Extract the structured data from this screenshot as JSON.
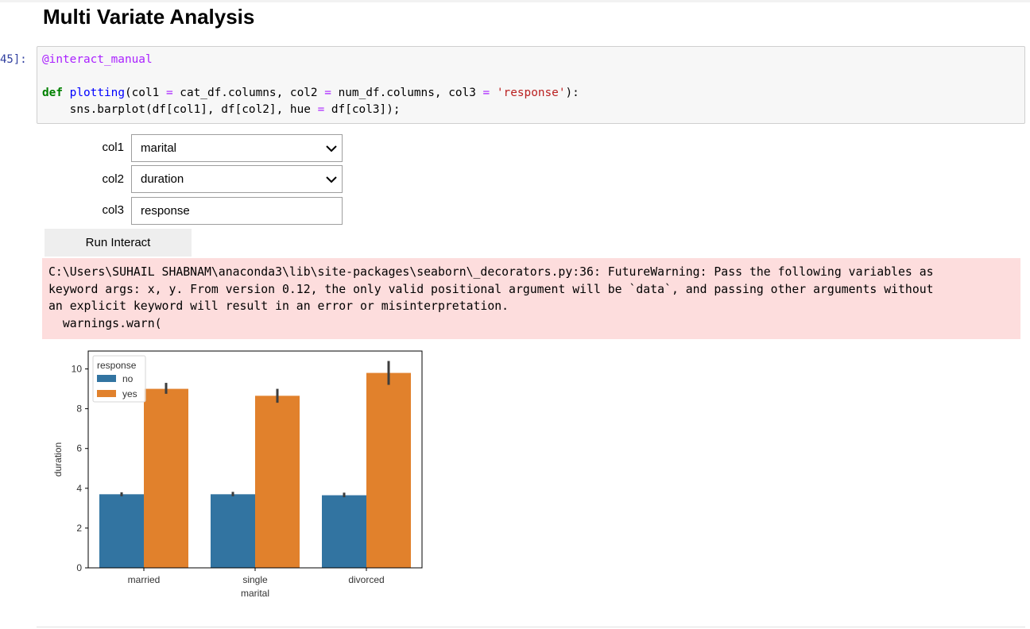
{
  "heading": "Multi Variate Analysis",
  "prompt": "45]:",
  "code": {
    "line1": {
      "decorator": "@interact_manual"
    },
    "line3": {
      "kw": "def",
      "fn": "plotting",
      "p1": "(col1 ",
      "eq1": "=",
      "p2": " cat_df.columns, col2 ",
      "eq2": "=",
      "p3": " num_df.columns, col3 ",
      "eq3": "=",
      "p4": " ",
      "str": "'response'",
      "p5": "):"
    },
    "line4": {
      "p1": "    sns.barplot(df[col1], df[col2], hue ",
      "eq": "=",
      "p2": " df[col3]);"
    }
  },
  "widgets": {
    "col1": {
      "label": "col1",
      "value": "marital"
    },
    "col2": {
      "label": "col2",
      "value": "duration"
    },
    "col3": {
      "label": "col3",
      "value": "response"
    },
    "run_label": "Run Interact"
  },
  "warning": {
    "line1": "C:\\Users\\SUHAIL SHABNAM\\anaconda3\\lib\\site-packages\\seaborn\\_decorators.py:36: FutureWarning: Pass the following variables as",
    "line2": "keyword args: x, y. From version 0.12, the only valid positional argument will be `data`, and passing other arguments without",
    "line3": "an explicit keyword will result in an error or misinterpretation.",
    "line4": "  warnings.warn("
  },
  "chart_data": {
    "type": "bar",
    "categories": [
      "married",
      "single",
      "divorced"
    ],
    "series": [
      {
        "name": "no",
        "values": [
          3.7,
          3.7,
          3.65
        ],
        "err": [
          [
            3.6,
            3.8
          ],
          [
            3.6,
            3.82
          ],
          [
            3.55,
            3.78
          ]
        ],
        "color": "#3274a1"
      },
      {
        "name": "yes",
        "values": [
          9.0,
          8.65,
          9.8
        ],
        "err": [
          [
            8.75,
            9.3
          ],
          [
            8.3,
            9.0
          ],
          [
            9.2,
            10.4
          ]
        ],
        "color": "#e1812c"
      }
    ],
    "title": "",
    "xlabel": "marital",
    "ylabel": "duration",
    "ylim": [
      0,
      10.9
    ],
    "yticks": [
      0,
      2,
      4,
      6,
      8,
      10
    ],
    "legend": {
      "title": "response",
      "position": "top-left"
    },
    "grid": false
  }
}
